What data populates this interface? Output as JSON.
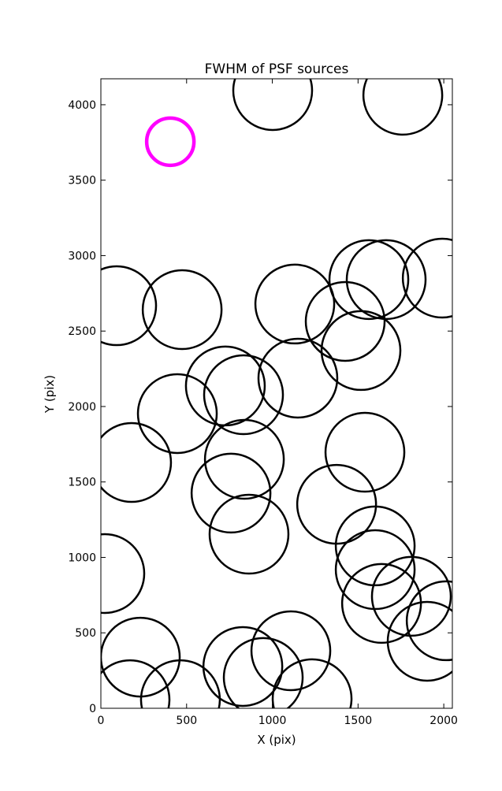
{
  "chart_data": {
    "type": "scatter",
    "title": "FWHM of PSF sources",
    "xlabel": "X (pix)",
    "ylabel": "Y (pix)",
    "xlim": [
      0,
      2050
    ],
    "ylim": [
      0,
      4172
    ],
    "xticks": [
      0,
      500,
      1000,
      1500,
      2000
    ],
    "yticks": [
      0,
      500,
      1000,
      1500,
      2000,
      2500,
      3000,
      3500,
      4000
    ],
    "series": [
      {
        "color": "#000000",
        "x": [
          1002,
          1761,
          92,
          474,
          1131,
          1563,
          1664,
          1991,
          1425,
          1517,
          726,
          832,
          1149,
          446,
          179,
          837,
          1540,
          759,
          1375,
          864,
          23,
          1600,
          1600,
          1811,
          1637,
          2014,
          1903,
          230,
          828,
          1108,
          947,
          170,
          464,
          1232
        ],
        "values": [
          4094,
          4063,
          2668,
          2642,
          2679,
          2841,
          2841,
          2851,
          2564,
          2371,
          2136,
          2078,
          2188,
          1953,
          1629,
          1650,
          1697,
          1426,
          1352,
          1154,
          893,
          1076,
          919,
          742,
          695,
          580,
          444,
          339,
          277,
          381,
          204,
          57,
          57,
          63
        ]
      },
      {
        "color": "#ff00ff",
        "x": [
          405
        ],
        "values": [
          3755
        ]
      }
    ]
  }
}
